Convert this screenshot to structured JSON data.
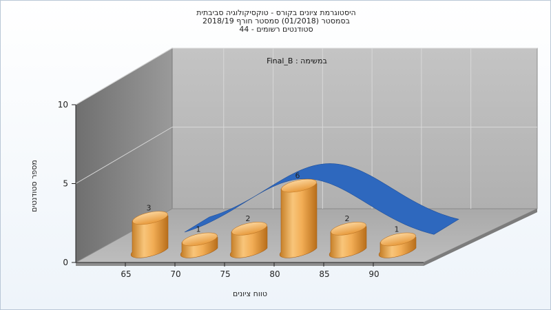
{
  "title": {
    "line1": "היסטוגרמת ציונים בקורס - טוקסיקולוגיה סביבתית",
    "line2": "בסמסטר  (01/2018)  סמסטר חורף 2018/19",
    "line3": "סטודנטים רשומים - 44"
  },
  "chart_data": {
    "type": "bar",
    "title": "במשימה : Final_B",
    "xlabel": "טווח ציונים",
    "ylabel": "מספר סטודנטים",
    "x_tick_labels": [
      "65",
      "70",
      "75",
      "80",
      "85",
      "90"
    ],
    "y_tick_labels": [
      "0",
      "5",
      "10"
    ],
    "ylim": [
      0,
      10
    ],
    "categories": [
      "65",
      "70",
      "75",
      "80",
      "85",
      "90"
    ],
    "values": [
      3,
      1,
      2,
      6,
      2,
      1
    ],
    "data_labels": [
      "3",
      "1",
      "2",
      "6",
      "2",
      "1"
    ],
    "grid": true,
    "style": "3d cylinder bars with smooth distribution curve behind",
    "bar_color": "#f0a850",
    "curve_color": "#2e68be",
    "wall_color": "#b3b3b3"
  }
}
